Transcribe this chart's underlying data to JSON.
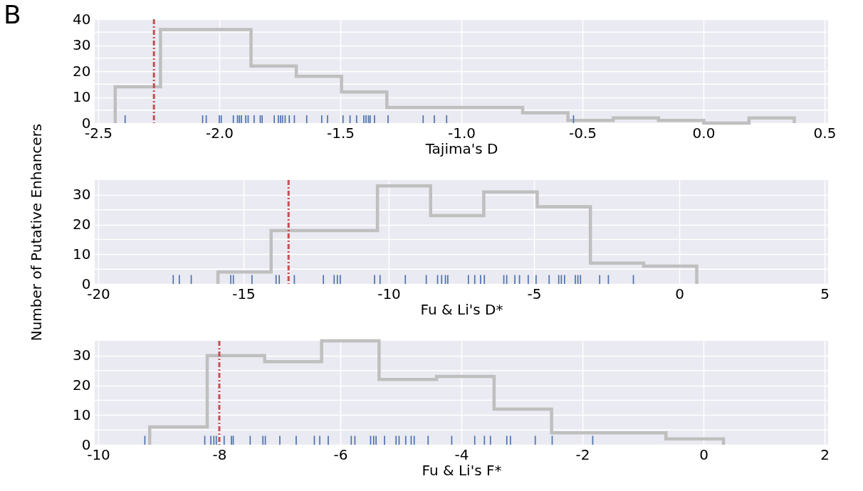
{
  "chart_data": [
    {
      "type": "histogram",
      "xlabel": "Tajima's D",
      "annotations": [
        "B"
      ],
      "grid": true,
      "xlim": [
        -2.5,
        0.5
      ],
      "xticks": [
        -2.5,
        {
          "value": -2,
          "label": "-2.0"
        },
        -1.5,
        {
          "value": -1,
          "label": "-1.0"
        },
        -0.5,
        {
          "value": 0,
          "label": "0.0"
        },
        0.5
      ],
      "ylim": [
        0,
        40
      ],
      "yticks": [
        0,
        {
          "value": 5,
          "label": null
        },
        10,
        {
          "value": 15,
          "label": null
        },
        20,
        {
          "value": 25,
          "label": null
        },
        30,
        {
          "value": 35,
          "label": null
        },
        40
      ],
      "series": [
        {
          "color": "#bfbfbf",
          "bins": [
            -2.43,
            -2.243,
            -2.056,
            -1.869,
            -1.682,
            -1.495,
            -1.308,
            -1.121,
            -0.934,
            -0.747,
            -0.56,
            -0.373,
            -0.186,
            0.001,
            0.188,
            0.375
          ],
          "values": [
            14,
            36,
            36,
            22,
            18,
            12,
            6,
            6,
            6,
            4,
            1,
            2,
            1,
            0,
            2
          ]
        },
        {
          "type": "bar",
          "color": "#4c72b0",
          "x": [
            -2.389,
            -2.069,
            -2.054,
            -2.0,
            -1.992,
            -1.942,
            -1.925,
            -1.917,
            -1.909,
            -1.891,
            -1.881,
            -1.856,
            -1.831,
            -1.823,
            -1.773,
            -1.756,
            -1.747,
            -1.739,
            -1.728,
            -1.711,
            -1.69,
            -1.639,
            -1.577,
            -1.553,
            -1.489,
            -1.46,
            -1.433,
            -1.403,
            -1.394,
            -1.384,
            -1.377,
            -1.359,
            -1.303,
            -1.158,
            -1.112,
            -1.061,
            -0.537
          ],
          "values": [
            3,
            3,
            3,
            3,
            3,
            3,
            3,
            3,
            3,
            3,
            3,
            3,
            3,
            3,
            3,
            3,
            3,
            3,
            3,
            3,
            3,
            3,
            3,
            3,
            3,
            3,
            3,
            3,
            3,
            3,
            3,
            3,
            3,
            3,
            3,
            3,
            3
          ]
        }
      ],
      "ref_lines": [
        {
          "axis": "x",
          "value": -2.27,
          "color": "#c44e52",
          "line_style": "dashdot"
        }
      ]
    },
    {
      "type": "histogram",
      "xlabel": "Fu & Li's D*",
      "ylabel": "Number of Putative Enhancers",
      "grid": true,
      "xlim": [
        -20,
        5
      ],
      "xticks": [
        -20,
        -15,
        -10,
        -5,
        0,
        5
      ],
      "ylim": [
        0,
        35
      ],
      "yticks": [
        0,
        {
          "value": 5,
          "label": null
        },
        10,
        {
          "value": 15,
          "label": null
        },
        20,
        {
          "value": 25,
          "label": null
        },
        30
      ],
      "series": [
        {
          "color": "#bfbfbf",
          "bins": [
            -15.88,
            -14.05,
            -12.22,
            -10.39,
            -8.56,
            -6.73,
            -4.89,
            -3.06,
            -1.23,
            0.6
          ],
          "values": [
            4,
            18,
            18,
            33,
            23,
            31,
            26,
            7,
            6
          ]
        },
        {
          "type": "bar",
          "color": "#4c72b0",
          "x": [
            -17.42,
            -17.21,
            -16.8,
            -15.44,
            -15.35,
            -14.71,
            -13.88,
            -13.77,
            -13.25,
            -12.25,
            -11.88,
            -11.77,
            -11.67,
            -10.49,
            -10.3,
            -9.43,
            -8.71,
            -8.32,
            -8.18,
            -8.05,
            -7.97,
            -7.26,
            -7.04,
            -6.84,
            -6.71,
            -6.04,
            -5.94,
            -5.66,
            -5.5,
            -5.2,
            -4.93,
            -4.48,
            -4.15,
            -4.06,
            -3.95,
            -3.58,
            -3.49,
            -3.4,
            -2.74,
            -2.44,
            -1.58
          ],
          "values": [
            3,
            3,
            3,
            3,
            3,
            3,
            3,
            3,
            3,
            3,
            3,
            3,
            3,
            3,
            3,
            3,
            3,
            3,
            3,
            3,
            3,
            3,
            3,
            3,
            3,
            3,
            3,
            3,
            3,
            3,
            3,
            3,
            3,
            3,
            3,
            3,
            3,
            3,
            3,
            3,
            3
          ]
        }
      ],
      "ref_lines": [
        {
          "axis": "x",
          "value": -13.45,
          "color": "#c44e52",
          "line_style": "dashdot"
        }
      ]
    },
    {
      "type": "histogram",
      "xlabel": "Fu & Li's F*",
      "grid": true,
      "xlim": [
        -10,
        2
      ],
      "xticks": [
        -10,
        -8,
        -6,
        -4,
        -2,
        0,
        2
      ],
      "ylim": [
        0,
        35
      ],
      "yticks": [
        0,
        {
          "value": 5,
          "label": null
        },
        10,
        {
          "value": 15,
          "label": null
        },
        20,
        {
          "value": 25,
          "label": null
        },
        30
      ],
      "series": [
        {
          "color": "#bfbfbf",
          "bins": [
            -9.15,
            -8.2,
            -7.25,
            -6.31,
            -5.36,
            -4.41,
            -3.46,
            -2.51,
            -1.57,
            -0.62,
            0.33
          ],
          "values": [
            6,
            30,
            28,
            35,
            22,
            23,
            12,
            4,
            4,
            2
          ]
        },
        {
          "type": "bar",
          "color": "#4c72b0",
          "x": [
            -9.23,
            -8.24,
            -8.14,
            -8.09,
            -8.05,
            -7.92,
            -7.8,
            -7.77,
            -7.49,
            -7.28,
            -7.24,
            -7.0,
            -6.73,
            -6.43,
            -6.34,
            -6.2,
            -5.82,
            -5.76,
            -5.5,
            -5.45,
            -5.41,
            -5.27,
            -5.08,
            -5.03,
            -4.92,
            -4.83,
            -4.78,
            -4.55,
            -4.16,
            -3.78,
            -3.62,
            -3.52,
            -3.25,
            -3.19,
            -2.78,
            -2.5,
            -1.83
          ],
          "values": [
            3,
            3,
            3,
            3,
            3,
            3,
            3,
            3,
            3,
            3,
            3,
            3,
            3,
            3,
            3,
            3,
            3,
            3,
            3,
            3,
            3,
            3,
            3,
            3,
            3,
            3,
            3,
            3,
            3,
            3,
            3,
            3,
            3,
            3,
            3,
            3,
            3
          ]
        }
      ],
      "ref_lines": [
        {
          "axis": "x",
          "value": -8.0,
          "color": "#c44e52",
          "line_style": "dashdot"
        }
      ]
    }
  ]
}
